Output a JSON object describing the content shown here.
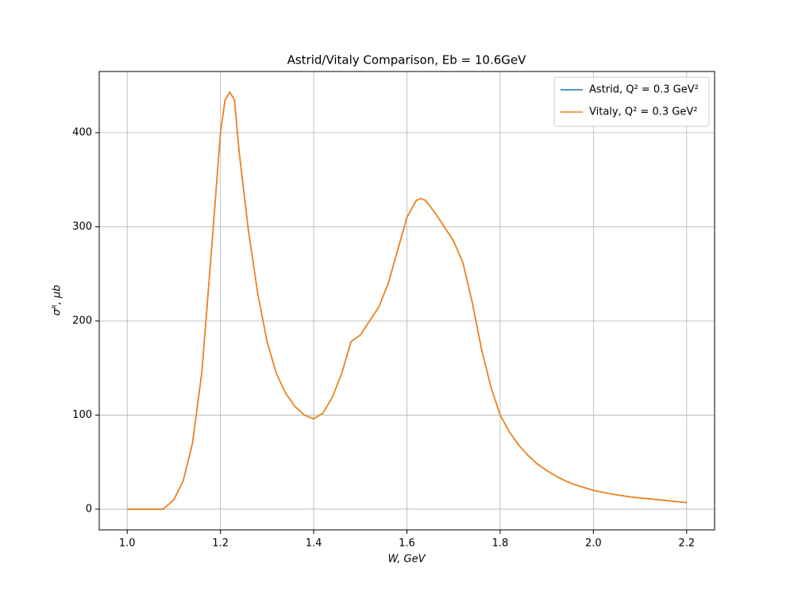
{
  "chart_data": {
    "type": "line",
    "title": "Astrid/Vitaly Comparison, Eb = 10.6GeV",
    "xlabel": "W, GeV",
    "ylabel": "σᴿ, μb",
    "x": [
      1.0,
      1.02,
      1.04,
      1.06,
      1.077,
      1.1,
      1.12,
      1.14,
      1.16,
      1.18,
      1.2,
      1.21,
      1.22,
      1.23,
      1.24,
      1.26,
      1.28,
      1.3,
      1.32,
      1.34,
      1.36,
      1.38,
      1.4,
      1.42,
      1.44,
      1.46,
      1.48,
      1.5,
      1.52,
      1.54,
      1.56,
      1.58,
      1.6,
      1.62,
      1.63,
      1.64,
      1.66,
      1.68,
      1.7,
      1.72,
      1.74,
      1.76,
      1.78,
      1.8,
      1.82,
      1.84,
      1.86,
      1.88,
      1.9,
      1.92,
      1.94,
      1.96,
      1.98,
      2.0,
      2.04,
      2.08,
      2.12,
      2.16,
      2.2
    ],
    "series": [
      {
        "name": "Astrid, Q² = 0.3 GeV²",
        "color": "#1f77b4",
        "values": [
          0,
          0,
          0,
          0,
          0,
          10,
          30,
          70,
          145,
          270,
          400,
          435,
          443,
          435,
          380,
          296,
          229,
          178,
          144,
          123,
          109,
          100,
          96,
          102,
          119,
          144,
          178,
          185,
          200,
          215,
          240,
          275,
          310,
          328,
          330,
          328,
          315,
          300,
          285,
          262,
          220,
          170,
          130,
          100,
          82,
          68,
          57,
          48,
          41,
          35,
          30,
          26,
          23,
          20,
          16,
          13,
          11,
          9,
          7
        ]
      },
      {
        "name": "Vitaly, Q² = 0.3 GeV²",
        "color": "#ff7f0e",
        "values": [
          0,
          0,
          0,
          0,
          0,
          10,
          30,
          70,
          145,
          270,
          400,
          435,
          443,
          435,
          380,
          296,
          229,
          178,
          144,
          123,
          109,
          100,
          96,
          102,
          119,
          144,
          178,
          185,
          200,
          215,
          240,
          275,
          310,
          328,
          330,
          328,
          315,
          300,
          285,
          262,
          220,
          170,
          130,
          100,
          82,
          68,
          57,
          48,
          41,
          35,
          30,
          26,
          23,
          20,
          16,
          13,
          11,
          9,
          7
        ]
      }
    ],
    "xlim": [
      0.94,
      2.26
    ],
    "ylim": [
      -22,
      465
    ],
    "xticks": [
      {
        "value": 1.0,
        "label": "1.0"
      },
      1.2,
      1.4,
      1.6,
      1.8,
      {
        "value": 2.0,
        "label": "2.0"
      },
      2.2
    ],
    "yticks": [
      0,
      100,
      200,
      300,
      400
    ],
    "grid": true,
    "legend": "upper right"
  }
}
